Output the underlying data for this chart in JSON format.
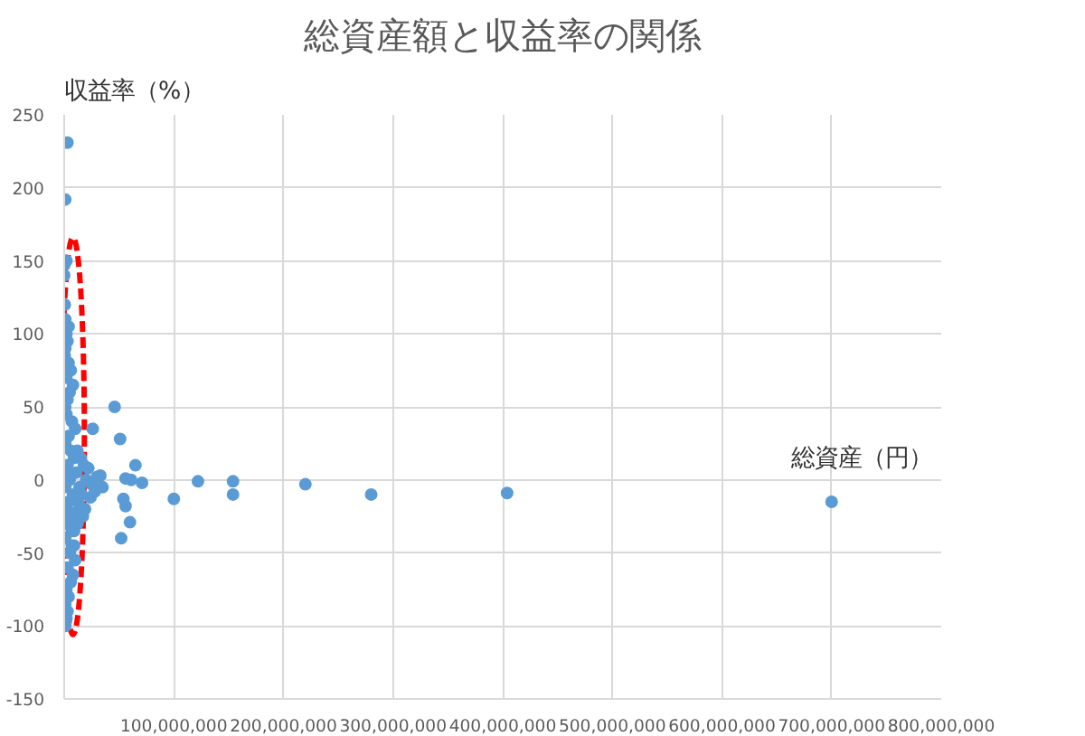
{
  "chart_data": {
    "type": "scatter",
    "title": "総資産額と収益率の関係",
    "xlabel": "総資産（円）",
    "ylabel": "収益率（%）",
    "x": [
      3000000,
      1000000,
      2000000,
      0,
      0,
      500000,
      1000000,
      2000000,
      3000000,
      1000000,
      500000,
      4000000,
      6000000,
      2000000,
      8000000,
      5000000,
      3000000,
      1000000,
      2000000,
      7000000,
      10000000,
      4000000,
      1000000,
      6000000,
      9000000,
      3000000,
      2000000,
      12000000,
      5000000,
      1000000,
      15000000,
      8000000,
      4000000,
      2000000,
      18000000,
      6000000,
      11000000,
      3000000,
      20000000,
      14000000,
      7000000,
      1000000,
      25000000,
      16000000,
      9000000,
      22000000,
      30000000,
      13000000,
      5000000,
      28000000,
      19000000,
      35000000,
      10000000,
      24000000,
      33000000,
      17000000,
      3000000,
      8000000,
      12000000,
      6000000,
      2000000,
      4000000,
      9000000,
      1000000,
      7000000,
      3000000,
      11000000,
      2000000,
      1000000,
      4000000,
      46000000,
      26000000,
      51000000,
      65000000,
      71000000,
      56000000,
      61000000,
      54000000,
      56000000,
      52000000,
      60000000,
      100000000,
      122000000,
      154000000,
      154000000,
      220000000,
      280000000,
      404000000,
      700000000
    ],
    "values": [
      231,
      192,
      150,
      147,
      140,
      120,
      110,
      100,
      95,
      90,
      85,
      80,
      75,
      70,
      65,
      60,
      55,
      50,
      45,
      40,
      35,
      30,
      25,
      20,
      15,
      10,
      5,
      20,
      0,
      -5,
      15,
      -10,
      -15,
      -20,
      10,
      -25,
      5,
      -30,
      0,
      -5,
      -35,
      -40,
      -3,
      -10,
      -45,
      8,
      2,
      -15,
      -50,
      -8,
      -20,
      -5,
      -55,
      -12,
      3,
      -25,
      -60,
      -65,
      -30,
      -70,
      -75,
      -80,
      -35,
      -85,
      -45,
      -90,
      -22,
      -95,
      -100,
      105,
      50,
      35,
      28,
      10,
      -2,
      1,
      0,
      -13,
      -18,
      -40,
      -29,
      -13,
      -1,
      -1,
      -10,
      -3,
      -10,
      -9,
      -15
    ],
    "color": "#5b9bd5",
    "marker": "circle",
    "xlim": [
      0,
      800000000
    ],
    "ylim": [
      -150,
      250
    ],
    "xticks": [
      {
        "value": 0,
        "label": null
      },
      {
        "value": 100000000,
        "label": "100,000,000"
      },
      {
        "value": 200000000,
        "label": "200,000,000"
      },
      {
        "value": 300000000,
        "label": "300,000,000"
      },
      {
        "value": 400000000,
        "label": "400,000,000"
      },
      {
        "value": 500000000,
        "label": "500,000,000"
      },
      {
        "value": 600000000,
        "label": "600,000,000"
      },
      {
        "value": 700000000,
        "label": "700,000,000"
      },
      {
        "value": 800000000,
        "label": "800,000,000"
      }
    ],
    "yticks": [
      -150,
      -100,
      -50,
      0,
      50,
      100,
      150,
      200,
      250
    ],
    "grid": true
  }
}
